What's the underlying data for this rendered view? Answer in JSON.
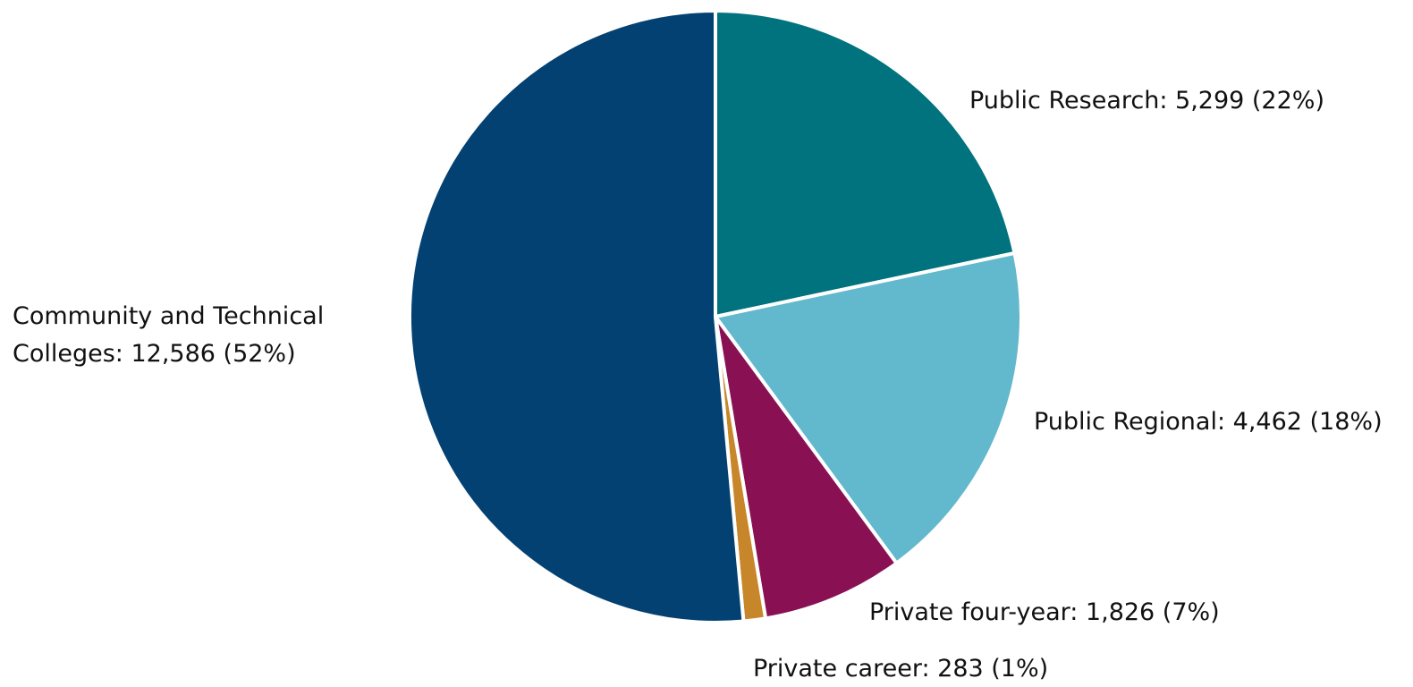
{
  "chart_data": {
    "type": "pie",
    "title": "",
    "slices": [
      {
        "name": "Public Research",
        "value": 5299,
        "percent": 22,
        "color": "#00737f",
        "label": "Public Research: 5,299 (22%)"
      },
      {
        "name": "Public Regional",
        "value": 4462,
        "percent": 18,
        "color": "#62b8cc",
        "label": "Public Regional: 4,462 (18%)"
      },
      {
        "name": "Private four-year",
        "value": 1826,
        "percent": 7,
        "color": "#8a1054",
        "label": "Private four-year: 1,826 (7%)"
      },
      {
        "name": "Private career",
        "value": 283,
        "percent": 1,
        "color": "#c8862b",
        "label": "Private career: 283 (1%)"
      },
      {
        "name": "Community and Technical Colleges",
        "value": 12586,
        "percent": 52,
        "color": "#034172",
        "label": "Community and Technical Colleges: 12,586 (52%)",
        "label_lines": [
          "Community and Technical",
          "Colleges: 12,586 (52%)"
        ]
      }
    ]
  }
}
